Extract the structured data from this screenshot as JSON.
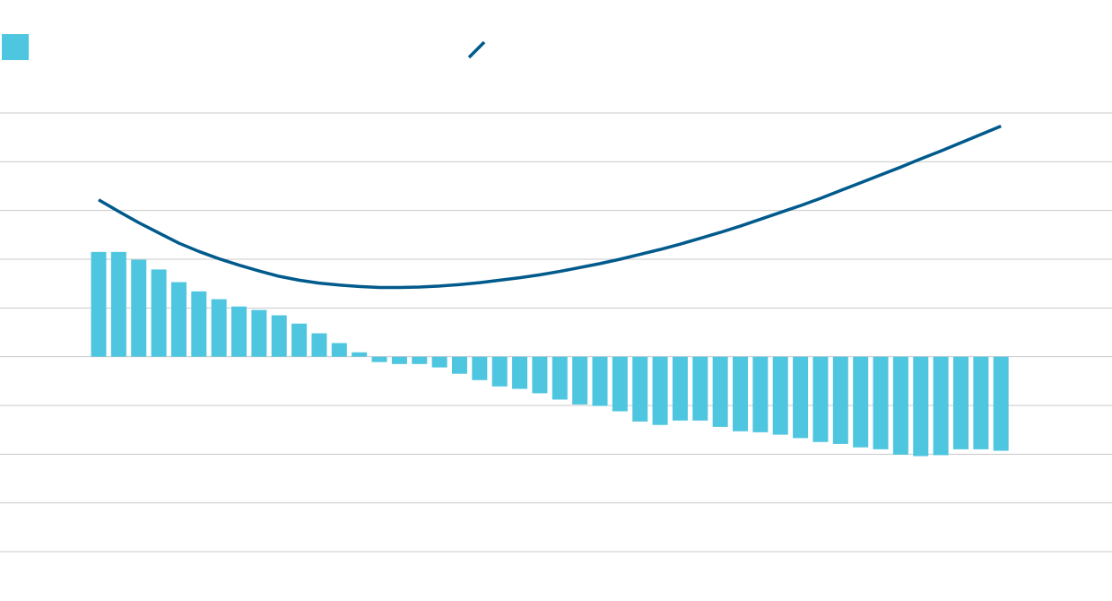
{
  "chart_data": {
    "type": "combo",
    "categories": [
      null,
      null,
      null,
      null,
      null,
      null,
      null,
      null,
      null,
      null,
      null,
      null,
      null,
      null,
      null,
      null,
      null,
      null,
      null,
      null,
      null,
      null,
      null,
      null,
      null,
      null,
      null,
      null,
      null,
      null,
      null,
      null,
      null,
      null,
      null,
      null,
      null,
      null,
      null,
      null,
      null,
      null,
      null,
      null,
      null,
      null
    ],
    "series": [
      {
        "type": "bar",
        "color": "#4fc6e0",
        "values": [
          2.15,
          2.15,
          1.99,
          1.79,
          1.53,
          1.34,
          1.18,
          1.03,
          0.96,
          0.85,
          0.68,
          0.48,
          0.28,
          0.09,
          -0.11,
          -0.15,
          -0.15,
          -0.22,
          -0.35,
          -0.48,
          -0.61,
          -0.66,
          -0.75,
          -0.88,
          -0.98,
          -1.01,
          -1.12,
          -1.33,
          -1.4,
          -1.31,
          -1.31,
          -1.44,
          -1.53,
          -1.55,
          -1.6,
          -1.67,
          -1.75,
          -1.79,
          -1.86,
          -1.9,
          -2.01,
          -2.04,
          -2.02,
          -1.9,
          -1.9,
          -1.93
        ]
      },
      {
        "type": "line",
        "color": "#005a8c",
        "values": [
          3.22,
          2.98,
          2.75,
          2.54,
          2.33,
          2.16,
          2.01,
          1.88,
          1.76,
          1.65,
          1.57,
          1.51,
          1.47,
          1.44,
          1.42,
          1.42,
          1.43,
          1.45,
          1.48,
          1.52,
          1.57,
          1.62,
          1.68,
          1.75,
          1.83,
          1.91,
          2.0,
          2.1,
          2.2,
          2.31,
          2.43,
          2.55,
          2.68,
          2.82,
          2.96,
          3.1,
          3.25,
          3.41,
          3.57,
          3.73,
          3.89,
          4.06,
          4.22,
          4.39,
          4.56,
          4.73
        ]
      }
    ],
    "ylim": [
      -4,
      5
    ],
    "yticks": [
      -4,
      -3,
      -2,
      -1,
      0,
      1,
      2,
      3,
      4,
      5
    ],
    "grid": true
  }
}
